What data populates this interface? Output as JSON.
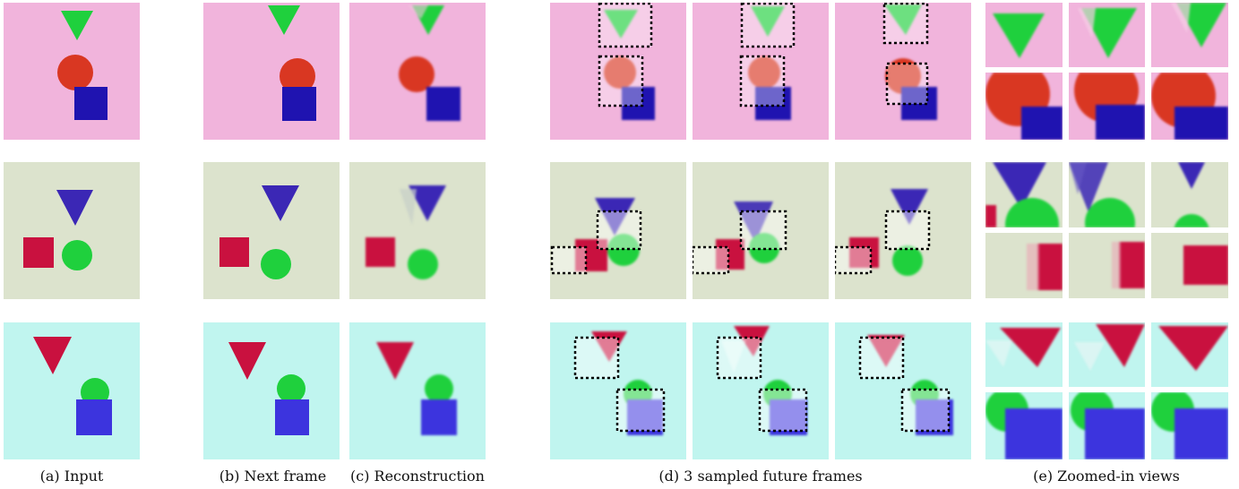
{
  "captions": {
    "input": "(a) Input",
    "next_frame": "(b) Next frame",
    "reconstruction": "(c) Reconstruction",
    "sampled": "(d) 3 sampled future frames",
    "zoomed": "(e) Zoomed-in views"
  },
  "colors": {
    "row1_background": "#f1b4dc",
    "row2_background": "#dce3cd",
    "row3_background": "#c0f5ef",
    "green": "#1fd03d",
    "red_orange": "#d93722",
    "dark_blue": "#1f13b0",
    "indigo": "#3b27b5",
    "crimson": "#c9113f",
    "blue": "#3c34de",
    "box_outline": "#000000"
  }
}
